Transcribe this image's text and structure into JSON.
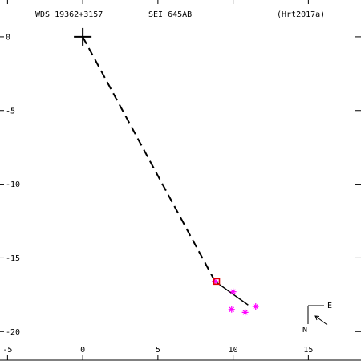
{
  "header": {
    "wds_id": "WDS 19362+3157",
    "pair_name": "SEI 645AB",
    "reference": "(Hrt2017a)"
  },
  "compass": {
    "east_label": "E",
    "north_label": "N"
  },
  "colors": {
    "axis": "#000000",
    "orbit": "#000000",
    "observation": "#ff00ff",
    "highlight": "#e00000"
  },
  "chart_data": {
    "type": "scatter",
    "title": "",
    "xlabel": "",
    "ylabel": "",
    "xlim": [
      -5.5,
      18.5
    ],
    "ylim": [
      -22,
      2.5
    ],
    "x_ticks": [
      {
        "value": -5,
        "label": "-5"
      },
      {
        "value": 0,
        "label": "0"
      },
      {
        "value": 5,
        "label": "5"
      },
      {
        "value": 10,
        "label": "10"
      },
      {
        "value": 15,
        "label": "15"
      }
    ],
    "y_ticks": [
      {
        "value": 0,
        "label": "0"
      },
      {
        "value": -5,
        "label": "-5"
      },
      {
        "value": -10,
        "label": "-10"
      },
      {
        "value": -15,
        "label": "-15"
      },
      {
        "value": -20,
        "label": "-20"
      }
    ],
    "primary": {
      "x": 0,
      "y": 0
    },
    "dashed_line": {
      "from": [
        0,
        0
      ],
      "to": [
        8.8,
        -16.6
      ]
    },
    "solid_line": {
      "from": [
        8.8,
        -16.6
      ],
      "to": [
        11.0,
        -18.2
      ]
    },
    "observations": [
      {
        "x": 8.8,
        "y": -16.6
      },
      {
        "x": 10.0,
        "y": -17.3
      },
      {
        "x": 9.9,
        "y": -18.5
      },
      {
        "x": 10.8,
        "y": -18.7
      },
      {
        "x": 11.5,
        "y": -18.3
      }
    ],
    "highlight_points": [
      {
        "x": 8.9,
        "y": -16.6
      }
    ]
  }
}
